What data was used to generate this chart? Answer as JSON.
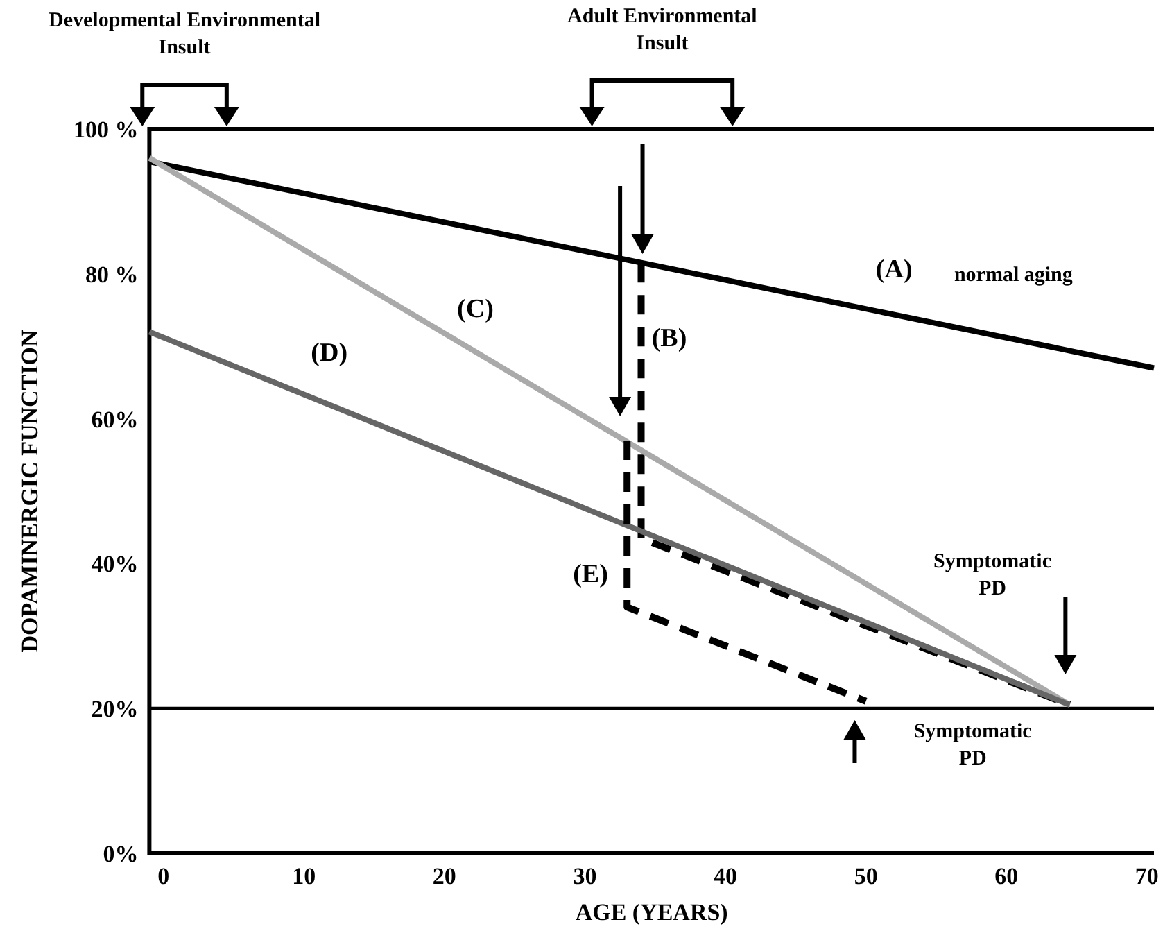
{
  "chart_data": {
    "type": "line",
    "xlabel": "AGE (YEARS)",
    "ylabel": "DOPAMINERGIC FUNCTION",
    "xlim": [
      -1,
      70.5
    ],
    "ylim": [
      0,
      100
    ],
    "xticks": [
      0,
      10,
      20,
      30,
      40,
      50,
      60,
      70
    ],
    "yticks": [
      {
        "value": 0,
        "label": "0%"
      },
      {
        "value": 20,
        "label": "20%"
      },
      {
        "value": 40,
        "label": "40%"
      },
      {
        "value": 60,
        "label": "60%"
      },
      {
        "value": 80,
        "label": "80 %"
      },
      {
        "value": 100,
        "label": "100 %"
      }
    ],
    "grid": false,
    "marker": "none",
    "series": [
      {
        "color": "#000000",
        "x": [
          -1,
          70.5
        ],
        "values": [
          95.5,
          67
        ]
      },
      {
        "color": "#000000",
        "line_style": "dashed",
        "x": [
          34,
          34,
          64.5
        ],
        "values": [
          81.5,
          43.5,
          20.5
        ]
      },
      {
        "color": "#aaaaaa",
        "x": [
          -1,
          64.5
        ],
        "values": [
          96,
          20.5
        ]
      },
      {
        "color": "#666666",
        "x": [
          -1,
          64.5
        ],
        "values": [
          72,
          20.5
        ]
      },
      {
        "color": "#000000",
        "line_style": "dashed",
        "x": [
          33,
          33,
          50
        ],
        "values": [
          57,
          34,
          21
        ]
      }
    ],
    "ref_lines": [
      {
        "axis": "y",
        "value": 20,
        "color": "#000000"
      }
    ],
    "annotations": [
      "Developmental Environmental\nInsult",
      "Adult Environmental\nInsult",
      "(A)",
      "normal aging",
      "(B)",
      "(C)",
      "(D)",
      "(E)",
      "Symptomatic\nPD",
      "Symptomatic\nPD"
    ]
  }
}
